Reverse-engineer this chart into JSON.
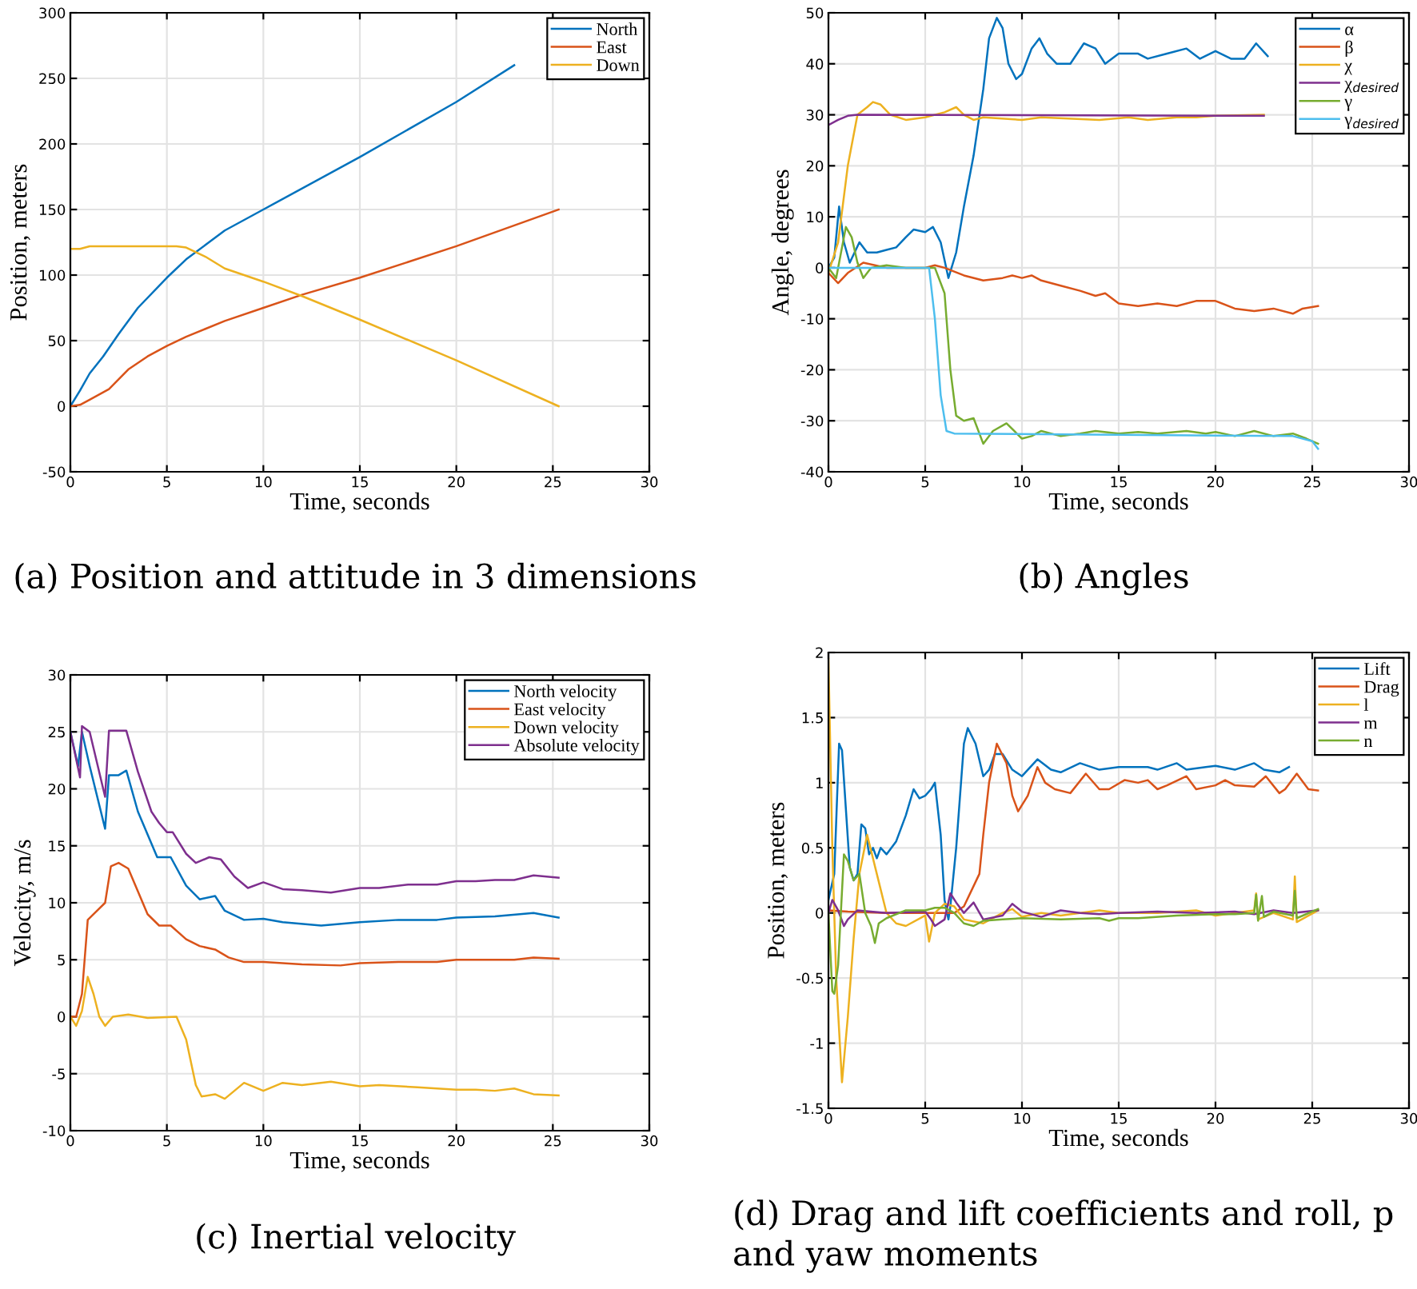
{
  "chart_data": [
    {
      "type": "line",
      "xlabel": "Time, seconds",
      "ylabel": "Position, meters",
      "xlim": [
        0,
        30
      ],
      "xticks": [
        0,
        5,
        10,
        15,
        20,
        25,
        30
      ],
      "ylim": [
        -50,
        300
      ],
      "yticks": [
        -50,
        0,
        50,
        100,
        150,
        200,
        250,
        300
      ],
      "grid": true,
      "legend": "top right",
      "annotations": [
        "(a) Position and attitude in 3 dimensions"
      ],
      "series": [
        {
          "name": "North",
          "color": "#0072bd",
          "x": [
            0,
            0.5,
            1,
            1.7,
            2.5,
            3.5,
            5,
            6,
            7,
            8,
            10,
            15,
            20,
            23
          ],
          "values": [
            0,
            12,
            25,
            38,
            55,
            75,
            98,
            112,
            123,
            134,
            150,
            190,
            232,
            260
          ]
        },
        {
          "name": "East",
          "color": "#d95319",
          "x": [
            0,
            0.5,
            1,
            2,
            3,
            4,
            5,
            6,
            7,
            8,
            10,
            12,
            15,
            20,
            25.3
          ],
          "values": [
            0,
            1,
            5,
            13,
            28,
            38,
            46,
            53,
            59,
            65,
            75,
            85,
            98,
            122,
            150
          ]
        },
        {
          "name": "Down",
          "color": "#edb120",
          "x": [
            0,
            0.5,
            1,
            3,
            5.5,
            6,
            7,
            8,
            10,
            12,
            15,
            20,
            25.3
          ],
          "values": [
            120,
            120,
            122,
            122,
            122,
            121,
            114,
            105,
            95,
            84,
            66,
            35,
            0
          ]
        }
      ]
    },
    {
      "type": "line",
      "xlabel": "Time, seconds",
      "ylabel": "Angle, degrees",
      "xlim": [
        0,
        30
      ],
      "xticks": [
        0,
        5,
        10,
        15,
        20,
        25,
        30
      ],
      "ylim": [
        -40,
        50
      ],
      "yticks": [
        -40,
        -30,
        -20,
        -10,
        0,
        10,
        20,
        30,
        40,
        50
      ],
      "grid": true,
      "legend": "top right",
      "annotations": [
        "(b) Angles"
      ],
      "series": [
        {
          "name": "α",
          "color": "#0072bd",
          "x": [
            0,
            0.3,
            0.55,
            0.8,
            1.1,
            1.6,
            2,
            2.5,
            3,
            3.5,
            4,
            4.4,
            5,
            5.4,
            5.8,
            6.2,
            6.6,
            7,
            7.5,
            8,
            8.3,
            8.7,
            9,
            9.3,
            9.7,
            10,
            10.5,
            10.9,
            11.3,
            11.8,
            12.5,
            13.2,
            13.8,
            14.3,
            15,
            16,
            16.5,
            17.5,
            18.5,
            19.2,
            20,
            20.8,
            21.5,
            22.1,
            22.7
          ],
          "values": [
            0,
            2,
            12,
            5,
            1,
            5,
            3,
            3,
            3.5,
            4,
            6,
            7.5,
            7,
            8,
            5,
            -2,
            3,
            12,
            22,
            35,
            45,
            49,
            47,
            40,
            37,
            38,
            43,
            45,
            42,
            40,
            40,
            44,
            43,
            40,
            42,
            42,
            41,
            42,
            43,
            41,
            42.5,
            41,
            41,
            44,
            41.5
          ]
        },
        {
          "name": "β",
          "color": "#d95319",
          "x": [
            0,
            0.5,
            1,
            1.8,
            3,
            4,
            5,
            5.5,
            6,
            7,
            8,
            9,
            9.5,
            10,
            10.5,
            11,
            12,
            13,
            13.8,
            14.3,
            15,
            16,
            17,
            18,
            19,
            20,
            21,
            22,
            23,
            24,
            24.5,
            25.3
          ],
          "values": [
            -1,
            -3,
            -1,
            1,
            0,
            0,
            0,
            0.5,
            0,
            -1.5,
            -2.5,
            -2,
            -1.5,
            -2,
            -1.5,
            -2.5,
            -3.5,
            -4.5,
            -5.5,
            -5,
            -7,
            -7.5,
            -7,
            -7.5,
            -6.5,
            -6.5,
            -8,
            -8.5,
            -8,
            -9,
            -8,
            -7.5
          ]
        },
        {
          "name": "χ",
          "color": "#edb120",
          "x": [
            0,
            0.5,
            1,
            1.5,
            2,
            2.3,
            2.7,
            3.2,
            4,
            5,
            6,
            6.6,
            7,
            7.5,
            8,
            10,
            11,
            14,
            15.5,
            16.5,
            18,
            19,
            20,
            22.5
          ],
          "values": [
            -1,
            5,
            20,
            30,
            31.5,
            32.5,
            32,
            30,
            29,
            29.5,
            30.5,
            31.5,
            30,
            29,
            29.5,
            29,
            29.5,
            29,
            29.5,
            29,
            29.5,
            29.5,
            29.8,
            30
          ]
        },
        {
          "name": "χ$_{desired}$",
          "color": "#7e2f8e",
          "x": [
            0,
            0.5,
            1,
            1.5,
            22.5
          ],
          "values": [
            28,
            29,
            29.8,
            30,
            29.8
          ]
        },
        {
          "name": "γ",
          "color": "#77ac30",
          "x": [
            0,
            0.4,
            0.9,
            1.2,
            1.5,
            1.8,
            2.2,
            3,
            4,
            5,
            5.5,
            6,
            6.3,
            6.6,
            7,
            7.5,
            8,
            8.5,
            9.2,
            10,
            10.5,
            11,
            12,
            13,
            13.8,
            15,
            16,
            17,
            18.5,
            19.5,
            20,
            21,
            22,
            23,
            24,
            24.7,
            25.3
          ],
          "values": [
            0,
            -2,
            8,
            6,
            1,
            -2,
            0,
            0.5,
            0,
            0,
            0,
            -5,
            -20,
            -29,
            -30,
            -29.5,
            -34.5,
            -32,
            -30.5,
            -33.5,
            -33,
            -32,
            -33,
            -32.5,
            -32,
            -32.5,
            -32.2,
            -32.5,
            -32,
            -32.5,
            -32.2,
            -33,
            -32,
            -33,
            -32.5,
            -33.5,
            -34.5
          ]
        },
        {
          "name": "γ$_{desired}$",
          "color": "#4dbeee",
          "x": [
            0,
            5.2,
            5.5,
            5.8,
            6.1,
            6.5,
            24,
            25,
            25.3
          ],
          "values": [
            0,
            0,
            -10,
            -25,
            -32,
            -32.5,
            -33,
            -34,
            -35.5
          ]
        }
      ]
    },
    {
      "type": "line",
      "xlabel": "Time, seconds",
      "ylabel": "Velocity, m/s",
      "xlim": [
        0,
        30
      ],
      "xticks": [
        0,
        5,
        10,
        15,
        20,
        25,
        30
      ],
      "ylim": [
        -10,
        30
      ],
      "yticks": [
        -10,
        -5,
        0,
        5,
        10,
        15,
        20,
        25,
        30
      ],
      "grid": true,
      "legend": "top right",
      "annotations": [
        "(c) Inertial velocity"
      ],
      "series": [
        {
          "name": "North velocity",
          "color": "#0072bd",
          "x": [
            0,
            0.4,
            0.6,
            1,
            1.8,
            2,
            2.5,
            2.9,
            3.5,
            4,
            4.5,
            5.2,
            6,
            6.7,
            7.5,
            8,
            9,
            10,
            11,
            13,
            15,
            17,
            19,
            20,
            22,
            24,
            25.3
          ],
          "values": [
            25,
            22,
            25,
            22,
            16.5,
            21.2,
            21.2,
            21.6,
            18,
            16,
            14,
            14,
            11.5,
            10.3,
            10.6,
            9.3,
            8.5,
            8.6,
            8.3,
            8,
            8.3,
            8.5,
            8.5,
            8.7,
            8.8,
            9.1,
            8.7
          ]
        },
        {
          "name": "East velocity",
          "color": "#d95319",
          "x": [
            0,
            0.3,
            0.6,
            0.9,
            1.5,
            1.8,
            2.1,
            2.5,
            3,
            3.5,
            4,
            4.6,
            5.2,
            6,
            6.7,
            7.5,
            8.2,
            9,
            10,
            12,
            14,
            15,
            17,
            19,
            20,
            23,
            24,
            25.3
          ],
          "values": [
            0,
            0,
            2,
            8.5,
            9.5,
            10,
            13.2,
            13.5,
            13,
            11,
            9,
            8,
            8,
            6.8,
            6.2,
            5.9,
            5.2,
            4.8,
            4.8,
            4.6,
            4.5,
            4.7,
            4.8,
            4.8,
            5,
            5,
            5.2,
            5.1
          ]
        },
        {
          "name": "Down velocity",
          "color": "#edb120",
          "x": [
            0,
            0.3,
            0.6,
            0.9,
            1.2,
            1.5,
            1.8,
            2.2,
            3,
            4,
            5.5,
            6,
            6.5,
            6.8,
            7.5,
            8,
            8.5,
            9,
            10,
            11,
            12,
            13.5,
            15,
            16,
            18,
            20,
            21,
            22,
            23,
            24,
            25.3
          ],
          "values": [
            0,
            -0.8,
            0.5,
            3.5,
            2,
            0,
            -0.8,
            0,
            0.2,
            -0.1,
            0,
            -2,
            -6,
            -7,
            -6.8,
            -7.2,
            -6.5,
            -5.8,
            -6.5,
            -5.8,
            -6,
            -5.7,
            -6.1,
            -6,
            -6.2,
            -6.4,
            -6.4,
            -6.5,
            -6.3,
            -6.8,
            -6.9
          ]
        },
        {
          "name": "Absolute velocity",
          "color": "#7e2f8e",
          "x": [
            0,
            0.5,
            0.6,
            1,
            1.8,
            2,
            2.9,
            3.5,
            4.2,
            4.6,
            5,
            5.3,
            6,
            6.5,
            7.2,
            7.8,
            8.5,
            9.2,
            10,
            11,
            12,
            13.5,
            15,
            16,
            17.5,
            19,
            20,
            21,
            22,
            23,
            24,
            25.3
          ],
          "values": [
            25,
            21,
            25.5,
            25,
            19.3,
            25.1,
            25.1,
            21.5,
            18,
            17,
            16.2,
            16.2,
            14.3,
            13.5,
            14,
            13.8,
            12.3,
            11.3,
            11.8,
            11.2,
            11.1,
            10.9,
            11.3,
            11.3,
            11.6,
            11.6,
            11.9,
            11.9,
            12,
            12,
            12.4,
            12.2
          ]
        }
      ]
    },
    {
      "type": "line",
      "xlabel": "Time, seconds",
      "ylabel": "Position, meters",
      "xlim": [
        0,
        30
      ],
      "xticks": [
        0,
        5,
        10,
        15,
        20,
        25,
        30
      ],
      "ylim": [
        -1.5,
        2
      ],
      "yticks": [
        -1.5,
        -1,
        -0.5,
        0,
        0.5,
        1,
        1.5,
        2
      ],
      "grid": true,
      "legend": "top right",
      "annotations": [
        "(d) Drag and lift coefficients and roll, p\nand yaw moments"
      ],
      "series": [
        {
          "name": "Lift",
          "color": "#0072bd",
          "x": [
            0,
            0.3,
            0.55,
            0.7,
            0.9,
            1.1,
            1.3,
            1.5,
            1.7,
            1.9,
            2.1,
            2.3,
            2.5,
            2.7,
            3,
            3.5,
            4,
            4.4,
            4.7,
            5,
            5.3,
            5.5,
            5.8,
            6,
            6.2,
            6.3,
            6.6,
            7,
            7.2,
            7.6,
            8,
            8.3,
            8.6,
            9,
            9.5,
            10,
            10.8,
            11.5,
            12,
            13,
            14,
            15,
            16.5,
            17,
            18,
            18.5,
            19.5,
            20,
            21,
            22,
            22.5,
            23.3,
            23.8
          ],
          "values": [
            0.1,
            0.3,
            1.3,
            1.25,
            0.8,
            0.35,
            0.25,
            0.3,
            0.68,
            0.65,
            0.45,
            0.5,
            0.42,
            0.5,
            0.45,
            0.55,
            0.75,
            0.95,
            0.88,
            0.9,
            0.95,
            1.0,
            0.6,
            0.1,
            -0.05,
            0.05,
            0.5,
            1.3,
            1.42,
            1.3,
            1.05,
            1.1,
            1.22,
            1.22,
            1.1,
            1.05,
            1.18,
            1.1,
            1.08,
            1.15,
            1.1,
            1.12,
            1.12,
            1.1,
            1.15,
            1.1,
            1.12,
            1.13,
            1.1,
            1.15,
            1.1,
            1.08,
            1.12
          ]
        },
        {
          "name": "Drag",
          "color": "#d95319",
          "x": [
            0,
            1,
            3,
            5,
            6.5,
            7,
            7.8,
            8,
            8.3,
            8.7,
            9.2,
            9.5,
            9.8,
            10.3,
            10.8,
            11.2,
            11.7,
            12.5,
            13.3,
            14,
            14.5,
            15.3,
            16,
            16.5,
            17,
            17.5,
            18.5,
            19,
            20,
            20.5,
            21,
            22,
            22.6,
            23.3,
            23.6,
            24.2,
            24.8,
            25.3
          ],
          "values": [
            0.02,
            0.01,
            0,
            0,
            0,
            0.05,
            0.3,
            0.6,
            1.0,
            1.3,
            1.15,
            0.9,
            0.78,
            0.9,
            1.12,
            1.0,
            0.95,
            0.92,
            1.07,
            0.95,
            0.95,
            1.02,
            1.0,
            1.02,
            0.95,
            0.98,
            1.05,
            0.95,
            0.98,
            1.02,
            0.98,
            0.97,
            1.05,
            0.92,
            0.95,
            1.07,
            0.95,
            0.94
          ]
        },
        {
          "name": "l",
          "color": "#edb120",
          "x": [
            0,
            0.2,
            0.4,
            0.7,
            1,
            1.3,
            1.6,
            2,
            2.5,
            3,
            3.5,
            4,
            5,
            5.2,
            5.5,
            6,
            6.5,
            7,
            8,
            9,
            9.5,
            10,
            11,
            12,
            14,
            15,
            17,
            19,
            20,
            21,
            22,
            22.1,
            22.2,
            23,
            24,
            24.1,
            24.2,
            25.3
          ],
          "values": [
            1.95,
            0.5,
            -0.5,
            -1.3,
            -0.8,
            -0.2,
            0.3,
            0.6,
            0.3,
            0,
            -0.08,
            -0.1,
            -0.02,
            -0.22,
            0,
            0.07,
            0.05,
            -0.05,
            -0.08,
            0,
            0.03,
            -0.03,
            0,
            -0.02,
            0.02,
            0,
            0,
            0.02,
            -0.02,
            0,
            0.02,
            0.15,
            -0.05,
            0,
            -0.05,
            0.28,
            -0.07,
            0.02
          ]
        },
        {
          "name": "m",
          "color": "#7e2f8e",
          "x": [
            0,
            0.2,
            0.5,
            0.8,
            1,
            1.5,
            3,
            5,
            5.3,
            5.5,
            6,
            6.3,
            6.6,
            7,
            7.5,
            8,
            9,
            9.5,
            10,
            11,
            12,
            13,
            14,
            15,
            17,
            19,
            21,
            22,
            23,
            24,
            25.3
          ],
          "values": [
            0,
            0.1,
            0.02,
            -0.1,
            -0.05,
            0.02,
            0,
            0.01,
            -0.05,
            -0.1,
            -0.05,
            0.15,
            0.08,
            0,
            0.08,
            -0.05,
            -0.02,
            0.07,
            0.01,
            -0.03,
            0.02,
            0,
            -0.01,
            0,
            0.01,
            0,
            0.01,
            -0.01,
            0.02,
            0,
            0.02
          ]
        },
        {
          "name": "n",
          "color": "#77ac30",
          "x": [
            0,
            0.2,
            0.3,
            0.5,
            0.8,
            1,
            1.3,
            1.6,
            1.9,
            2.2,
            2.4,
            2.6,
            3,
            4,
            5,
            5.5,
            6,
            6.5,
            7,
            7.5,
            8,
            9,
            10,
            12,
            14,
            14.5,
            15,
            16,
            18,
            20,
            21,
            22,
            22.1,
            22.2,
            22.4,
            22.5,
            23,
            24,
            24.1,
            24.2,
            25.3
          ],
          "values": [
            0,
            -0.6,
            -0.62,
            -0.4,
            0.45,
            0.4,
            0.25,
            0.3,
            0,
            -0.1,
            -0.23,
            -0.08,
            -0.04,
            0.02,
            0.02,
            0.04,
            0.04,
            0,
            -0.08,
            -0.1,
            -0.06,
            -0.05,
            -0.04,
            -0.05,
            -0.04,
            -0.06,
            -0.04,
            -0.04,
            -0.02,
            -0.01,
            -0.01,
            0,
            0.14,
            -0.06,
            0.13,
            -0.03,
            0.01,
            -0.02,
            0.17,
            -0.04,
            0.03
          ]
        }
      ]
    }
  ]
}
